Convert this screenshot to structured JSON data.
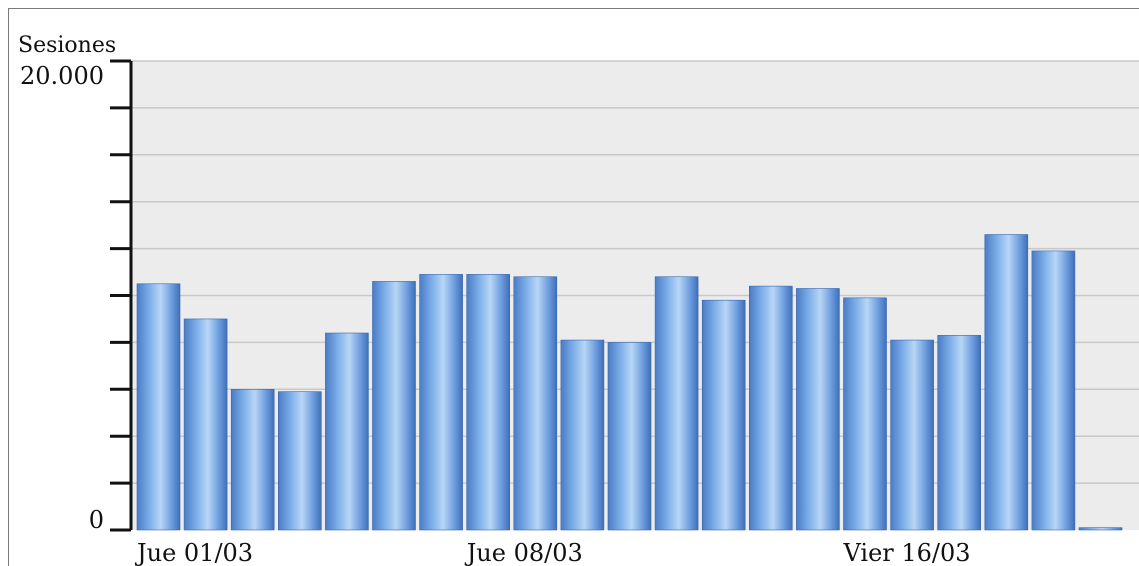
{
  "chart_data": {
    "type": "bar",
    "ylabel": "Sesiones",
    "ylim": [
      0,
      20000
    ],
    "y_tick_labels": [
      "20.000",
      "0"
    ],
    "y_tick_step": 2000,
    "x_tick_labels": [
      {
        "index": 0,
        "label": "Jue 01/03"
      },
      {
        "index": 7,
        "label": "Jue 08/03"
      },
      {
        "index": 15,
        "label": "Vier 16/03"
      }
    ],
    "values": [
      10500,
      9000,
      6000,
      5900,
      8400,
      10600,
      10900,
      10900,
      10800,
      8100,
      8000,
      10800,
      9800,
      10400,
      10300,
      9900,
      8100,
      8300,
      12600,
      11900,
      100
    ],
    "grid": true,
    "colors": {
      "bar": "#5b8fd6",
      "bar_light": "#b8d6f5",
      "plot_bg": "#ececec",
      "grid": "#c8c8c8"
    }
  }
}
